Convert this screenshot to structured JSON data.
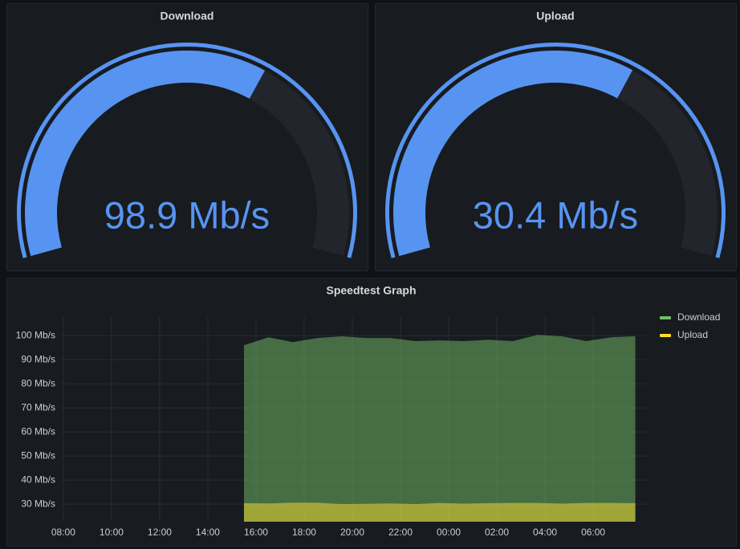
{
  "chart_data": [
    {
      "type": "gauge",
      "title": "Download",
      "values": [
        98.9
      ],
      "value_labels": [
        "98.9 Mb/s"
      ],
      "ylim": [
        0,
        155.5
      ],
      "color": "#5794f2",
      "threshold_color": "#5794f2"
    },
    {
      "type": "gauge",
      "title": "Upload",
      "values": [
        30.4
      ],
      "value_labels": [
        "30.4 Mb/s"
      ],
      "ylim": [
        0,
        47.9
      ],
      "color": "#5794f2",
      "threshold_color": "#5794f2"
    },
    {
      "type": "area",
      "title": "Speedtest Graph",
      "x": [
        15.5,
        16.52,
        17.53,
        18.55,
        19.56,
        20.58,
        21.59,
        22.61,
        23.63,
        24.64,
        25.66,
        26.67,
        27.69,
        28.7,
        29.72,
        30.73,
        31.75
      ],
      "series": [
        {
          "name": "Download",
          "color": "#73bf69",
          "values": [
            96,
            99.3,
            97.3,
            99,
            99.7,
            99,
            99,
            97.7,
            98,
            97.7,
            98.3,
            97.7,
            100.3,
            99.7,
            97.7,
            99.3,
            99.7
          ]
        },
        {
          "name": "Upload",
          "color": "#fade2a",
          "values": [
            30.4,
            30.3,
            30.6,
            30.6,
            30.0,
            30.1,
            30.3,
            30.0,
            30.5,
            30.2,
            30.4,
            30.5,
            30.5,
            30.2,
            30.5,
            30.5,
            30.4
          ]
        }
      ],
      "xlim": [
        7.87,
        32.23
      ],
      "ylim": [
        22.7,
        107.7
      ],
      "xticks": [
        {
          "value": 8,
          "label": "08:00"
        },
        {
          "value": 10,
          "label": "10:00"
        },
        {
          "value": 12,
          "label": "12:00"
        },
        {
          "value": 14,
          "label": "14:00"
        },
        {
          "value": 16,
          "label": "16:00"
        },
        {
          "value": 18,
          "label": "18:00"
        },
        {
          "value": 20,
          "label": "20:00"
        },
        {
          "value": 22,
          "label": "22:00"
        },
        {
          "value": 24,
          "label": "00:00"
        },
        {
          "value": 26,
          "label": "02:00"
        },
        {
          "value": 28,
          "label": "04:00"
        },
        {
          "value": 30,
          "label": "06:00"
        }
      ],
      "yticks": [
        {
          "value": 30,
          "label": "30 Mb/s"
        },
        {
          "value": 40,
          "label": "40 Mb/s"
        },
        {
          "value": 50,
          "label": "50 Mb/s"
        },
        {
          "value": 60,
          "label": "60 Mb/s"
        },
        {
          "value": 70,
          "label": "70 Mb/s"
        },
        {
          "value": 80,
          "label": "80 Mb/s"
        },
        {
          "value": 90,
          "label": "90 Mb/s"
        },
        {
          "value": 100,
          "label": "100 Mb/s"
        }
      ],
      "grid": true,
      "legend": "right"
    }
  ]
}
